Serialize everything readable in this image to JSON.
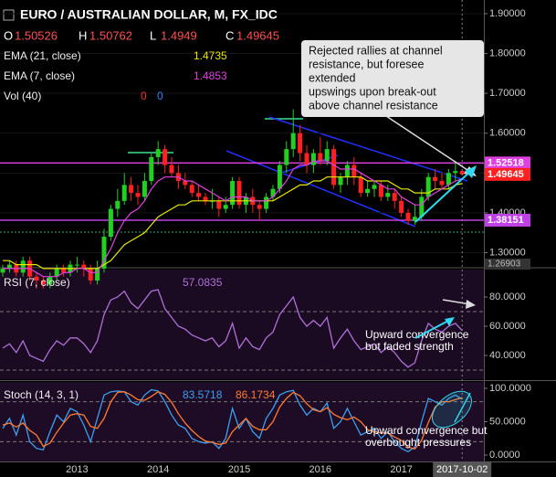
{
  "chart_data": [
    {
      "type": "candlestick",
      "title": "EURO / AUSTRALIAN DOLLAR, M, FX_IDC",
      "ohlc_labels": [
        "O",
        "H",
        "L",
        "C"
      ],
      "up_color": "#22d022",
      "down_color": "#ff2020",
      "candles": [
        [
          1.25,
          1.27,
          1.24,
          1.26
        ],
        [
          1.26,
          1.28,
          1.25,
          1.27
        ],
        [
          1.27,
          1.28,
          1.24,
          1.25
        ],
        [
          1.25,
          1.29,
          1.24,
          1.28
        ],
        [
          1.28,
          1.29,
          1.23,
          1.24
        ],
        [
          1.24,
          1.25,
          1.21,
          1.23
        ],
        [
          1.23,
          1.24,
          1.21,
          1.22
        ],
        [
          1.22,
          1.25,
          1.21,
          1.24
        ],
        [
          1.24,
          1.27,
          1.23,
          1.26
        ],
        [
          1.26,
          1.27,
          1.24,
          1.25
        ],
        [
          1.25,
          1.28,
          1.24,
          1.27
        ],
        [
          1.27,
          1.29,
          1.25,
          1.27
        ],
        [
          1.27,
          1.28,
          1.24,
          1.26
        ],
        [
          1.26,
          1.27,
          1.22,
          1.23
        ],
        [
          1.23,
          1.28,
          1.22,
          1.26
        ],
        [
          1.26,
          1.36,
          1.25,
          1.34
        ],
        [
          1.34,
          1.42,
          1.33,
          1.41
        ],
        [
          1.41,
          1.46,
          1.39,
          1.43
        ],
        [
          1.43,
          1.5,
          1.42,
          1.47
        ],
        [
          1.47,
          1.49,
          1.43,
          1.45
        ],
        [
          1.45,
          1.47,
          1.42,
          1.44
        ],
        [
          1.44,
          1.5,
          1.43,
          1.48
        ],
        [
          1.48,
          1.55,
          1.47,
          1.54
        ],
        [
          1.54,
          1.58,
          1.52,
          1.56
        ],
        [
          1.56,
          1.57,
          1.5,
          1.52
        ],
        [
          1.52,
          1.54,
          1.49,
          1.5
        ],
        [
          1.5,
          1.52,
          1.46,
          1.48
        ],
        [
          1.48,
          1.5,
          1.46,
          1.47
        ],
        [
          1.47,
          1.48,
          1.44,
          1.45
        ],
        [
          1.45,
          1.47,
          1.43,
          1.44
        ],
        [
          1.44,
          1.45,
          1.42,
          1.43
        ],
        [
          1.43,
          1.46,
          1.41,
          1.43
        ],
        [
          1.43,
          1.44,
          1.39,
          1.41
        ],
        [
          1.41,
          1.44,
          1.4,
          1.42
        ],
        [
          1.42,
          1.49,
          1.41,
          1.48
        ],
        [
          1.48,
          1.49,
          1.41,
          1.42
        ],
        [
          1.42,
          1.45,
          1.4,
          1.44
        ],
        [
          1.44,
          1.46,
          1.4,
          1.42
        ],
        [
          1.42,
          1.43,
          1.38,
          1.41
        ],
        [
          1.41,
          1.45,
          1.4,
          1.44
        ],
        [
          1.44,
          1.47,
          1.43,
          1.46
        ],
        [
          1.46,
          1.53,
          1.45,
          1.52
        ],
        [
          1.52,
          1.58,
          1.5,
          1.56
        ],
        [
          1.56,
          1.66,
          1.54,
          1.6
        ],
        [
          1.6,
          1.62,
          1.53,
          1.55
        ],
        [
          1.55,
          1.57,
          1.5,
          1.52
        ],
        [
          1.52,
          1.56,
          1.5,
          1.55
        ],
        [
          1.55,
          1.59,
          1.52,
          1.53
        ],
        [
          1.53,
          1.58,
          1.52,
          1.56
        ],
        [
          1.56,
          1.57,
          1.46,
          1.47
        ],
        [
          1.47,
          1.5,
          1.45,
          1.49
        ],
        [
          1.49,
          1.53,
          1.47,
          1.52
        ],
        [
          1.52,
          1.54,
          1.47,
          1.49
        ],
        [
          1.49,
          1.5,
          1.44,
          1.45
        ],
        [
          1.45,
          1.48,
          1.44,
          1.46
        ],
        [
          1.46,
          1.48,
          1.44,
          1.47
        ],
        [
          1.47,
          1.48,
          1.43,
          1.44
        ],
        [
          1.44,
          1.47,
          1.43,
          1.45
        ],
        [
          1.45,
          1.46,
          1.41,
          1.43
        ],
        [
          1.43,
          1.44,
          1.39,
          1.4
        ],
        [
          1.4,
          1.41,
          1.37,
          1.38
        ],
        [
          1.38,
          1.42,
          1.37,
          1.39
        ],
        [
          1.39,
          1.46,
          1.38,
          1.44
        ],
        [
          1.44,
          1.5,
          1.43,
          1.49
        ],
        [
          1.49,
          1.51,
          1.46,
          1.48
        ],
        [
          1.48,
          1.5,
          1.46,
          1.47
        ],
        [
          1.47,
          1.51,
          1.46,
          1.5
        ],
        [
          1.5,
          1.53,
          1.48,
          1.505
        ],
        [
          1.50526,
          1.50762,
          1.4949,
          1.49645
        ]
      ],
      "series": [
        {
          "name": "EMA (21, close)",
          "color": "#e8e800",
          "values": [
            1.28,
            1.28,
            1.27,
            1.27,
            1.27,
            1.27,
            1.26,
            1.26,
            1.26,
            1.26,
            1.26,
            1.26,
            1.26,
            1.26,
            1.26,
            1.27,
            1.28,
            1.3,
            1.32,
            1.33,
            1.34,
            1.35,
            1.37,
            1.39,
            1.4,
            1.41,
            1.42,
            1.42,
            1.43,
            1.43,
            1.43,
            1.43,
            1.43,
            1.43,
            1.43,
            1.43,
            1.43,
            1.43,
            1.43,
            1.43,
            1.43,
            1.44,
            1.45,
            1.46,
            1.47,
            1.47,
            1.48,
            1.48,
            1.49,
            1.49,
            1.49,
            1.49,
            1.49,
            1.49,
            1.48,
            1.48,
            1.48,
            1.48,
            1.47,
            1.46,
            1.46,
            1.45,
            1.45,
            1.45,
            1.46,
            1.46,
            1.46,
            1.47,
            1.4735
          ]
        },
        {
          "name": "EMA (7, close)",
          "color": "#e040e0",
          "values": [
            1.26,
            1.26,
            1.26,
            1.26,
            1.26,
            1.25,
            1.24,
            1.24,
            1.24,
            1.25,
            1.25,
            1.26,
            1.26,
            1.25,
            1.25,
            1.28,
            1.31,
            1.35,
            1.38,
            1.4,
            1.41,
            1.43,
            1.46,
            1.48,
            1.49,
            1.49,
            1.49,
            1.48,
            1.48,
            1.47,
            1.46,
            1.45,
            1.44,
            1.43,
            1.44,
            1.44,
            1.44,
            1.43,
            1.43,
            1.43,
            1.44,
            1.46,
            1.48,
            1.51,
            1.52,
            1.52,
            1.53,
            1.53,
            1.53,
            1.52,
            1.51,
            1.51,
            1.51,
            1.5,
            1.49,
            1.48,
            1.47,
            1.46,
            1.46,
            1.44,
            1.43,
            1.42,
            1.42,
            1.44,
            1.45,
            1.46,
            1.47,
            1.48,
            1.4853
          ]
        }
      ],
      "volume": {
        "name": "Vol (40)",
        "values": [
          0,
          0
        ],
        "colors": [
          "#ff3030",
          "#3080ff"
        ]
      },
      "hlines": [
        {
          "value": 1.52518,
          "color": "#e040e0"
        },
        {
          "value": 1.38151,
          "color": "#c040e8"
        }
      ],
      "ylim": [
        1.26903,
        1.916
      ],
      "yticks": [
        {
          "value": 1.3,
          "label": "1.30000"
        },
        {
          "value": 1.4,
          "label": "1.40000"
        },
        {
          "value": 1.5,
          "label": "1.50000"
        },
        {
          "value": 1.6,
          "label": "1.60000"
        },
        {
          "value": 1.7,
          "label": "1.70000"
        },
        {
          "value": 1.8,
          "label": "1.80000"
        },
        {
          "value": 1.9,
          "label": "1.90000"
        }
      ],
      "xticks": [
        {
          "value": 11,
          "label": "2013"
        },
        {
          "value": 23,
          "label": "2014"
        },
        {
          "value": 35,
          "label": "2015"
        },
        {
          "value": 47,
          "label": "2016"
        },
        {
          "value": 59,
          "label": "2017"
        }
      ],
      "crosshair": {
        "value": 68,
        "label": "2017-10-02"
      },
      "grid": true,
      "annotation": [
        "Rejected rallies at channel",
        "resistance, but foresee",
        "extended",
        " upswings upon break-out",
        "above channel resistance"
      ]
    },
    {
      "type": "line",
      "series": [
        {
          "name": "RSI (7, close)",
          "color": "#b070d8",
          "values": [
            45,
            48,
            42,
            50,
            40,
            38,
            36,
            44,
            50,
            47,
            52,
            52,
            48,
            42,
            50,
            68,
            78,
            80,
            84,
            76,
            72,
            78,
            84,
            85,
            72,
            66,
            60,
            58,
            54,
            52,
            50,
            52,
            46,
            50,
            62,
            45,
            52,
            46,
            44,
            52,
            56,
            68,
            74,
            80,
            66,
            60,
            64,
            60,
            66,
            45,
            52,
            58,
            50,
            44,
            46,
            48,
            42,
            46,
            42,
            36,
            32,
            35,
            50,
            62,
            58,
            56,
            60,
            62,
            57.0835
          ]
        }
      ],
      "ylim": [
        23.75,
        98.75
      ],
      "yticks": [
        {
          "value": 40,
          "label": "40.0000"
        },
        {
          "value": 60,
          "label": "60.0000"
        },
        {
          "value": 80,
          "label": "80.0000"
        }
      ],
      "bands": [
        30,
        70
      ],
      "annotation": [
        "Upward convergence",
        "but faded strength"
      ]
    },
    {
      "type": "line",
      "series": [
        {
          "name": "Stoch (14, 3, 1)",
          "color": "#3aa0f0",
          "values": [
            40,
            55,
            30,
            60,
            20,
            10,
            8,
            35,
            60,
            50,
            70,
            65,
            45,
            20,
            55,
            90,
            95,
            96,
            95,
            80,
            75,
            90,
            98,
            96,
            80,
            60,
            45,
            40,
            25,
            20,
            18,
            20,
            10,
            25,
            70,
            40,
            55,
            35,
            25,
            55,
            70,
            90,
            95,
            97,
            75,
            60,
            70,
            65,
            78,
            40,
            50,
            70,
            50,
            30,
            35,
            40,
            25,
            35,
            20,
            10,
            5,
            12,
            50,
            85,
            80,
            75,
            85,
            90,
            83.5718
          ]
        },
        {
          "color": "#ff7a30",
          "values": [
            45,
            48,
            42,
            48,
            37,
            30,
            13,
            18,
            34,
            48,
            60,
            62,
            60,
            43,
            40,
            55,
            80,
            94,
            95,
            90,
            83,
            82,
            88,
            95,
            91,
            79,
            62,
            48,
            37,
            28,
            21,
            19,
            16,
            18,
            35,
            45,
            55,
            43,
            38,
            38,
            50,
            72,
            85,
            94,
            89,
            77,
            68,
            65,
            71,
            61,
            56,
            53,
            57,
            50,
            38,
            35,
            33,
            33,
            27,
            22,
            12,
            9,
            22,
            49,
            72,
            80,
            80,
            83,
            86.1734
          ]
        }
      ],
      "ylim": [
        -9.6,
        109.6
      ],
      "yticks": [
        {
          "value": 0,
          "label": "0.0000"
        },
        {
          "value": 50,
          "label": "50.0000"
        },
        {
          "value": 100,
          "label": "100.0000"
        }
      ],
      "bands": [
        20,
        80
      ],
      "annotation": [
        "Upward convergence but",
        "overbought pressures"
      ]
    }
  ]
}
